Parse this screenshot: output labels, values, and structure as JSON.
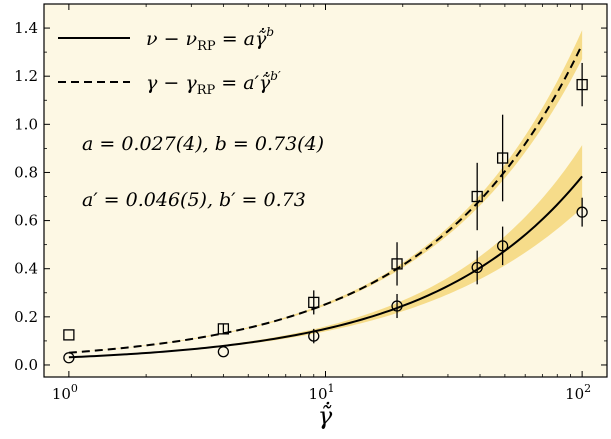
{
  "chart_data": {
    "type": "scatter",
    "xscale": "log",
    "xlim": [
      0.8,
      125
    ],
    "ylim": [
      -0.05,
      1.5
    ],
    "background": "#fdf8e4",
    "band_color": "#f5d77a",
    "xlabel": "γ̃̇",
    "x_ticks": [
      {
        "value": 1,
        "base": "10",
        "exp": "0"
      },
      {
        "value": 10,
        "base": "10",
        "exp": "1"
      },
      {
        "value": 100,
        "base": "10",
        "exp": "2"
      }
    ],
    "y_ticks": [
      {
        "value": 0.0,
        "label": "0.0"
      },
      {
        "value": 0.2,
        "label": "0.2"
      },
      {
        "value": 0.4,
        "label": "0.4"
      },
      {
        "value": 0.6,
        "label": "0.6"
      },
      {
        "value": 0.8,
        "label": "0.8"
      },
      {
        "value": 1.0,
        "label": "1.0"
      },
      {
        "value": 1.2,
        "label": "1.2"
      },
      {
        "value": 1.4,
        "label": "1.4"
      }
    ],
    "series": [
      {
        "name": "ν − ν_RP",
        "marker": "circle",
        "line": "solid",
        "fit": {
          "a": 0.027,
          "b": 0.73,
          "offset": 0.005,
          "band_at_100": 0.13
        },
        "points": [
          {
            "x": 1,
            "y": 0.03,
            "err": 0.0
          },
          {
            "x": 4,
            "y": 0.055,
            "err": 0.0
          },
          {
            "x": 9,
            "y": 0.12,
            "err": 0.03
          },
          {
            "x": 19,
            "y": 0.245,
            "err": 0.05
          },
          {
            "x": 39,
            "y": 0.405,
            "err": 0.07
          },
          {
            "x": 49,
            "y": 0.495,
            "err": 0.08
          },
          {
            "x": 100,
            "y": 0.635,
            "err": 0.06
          }
        ]
      },
      {
        "name": "γ − γ_RP",
        "marker": "square",
        "line": "dashed",
        "fit": {
          "a": 0.046,
          "b": 0.73,
          "offset": 0.005,
          "band_at_100": 0.06
        },
        "points": [
          {
            "x": 1,
            "y": 0.125,
            "err": 0.0
          },
          {
            "x": 4,
            "y": 0.15,
            "err": 0.02
          },
          {
            "x": 9,
            "y": 0.26,
            "err": 0.05
          },
          {
            "x": 19,
            "y": 0.42,
            "err": 0.09
          },
          {
            "x": 39,
            "y": 0.7,
            "err": 0.14
          },
          {
            "x": 49,
            "y": 0.86,
            "err": 0.18
          },
          {
            "x": 100,
            "y": 1.165,
            "err": 0.09
          }
        ]
      }
    ],
    "legend": {
      "placement": "top-left",
      "entries": [
        {
          "lhs": "ν − ν",
          "sub": "RP",
          "rhs": " = a",
          "sym": "γ̃̇",
          "exp": "b"
        },
        {
          "lhs": "γ − γ",
          "sub": "RP",
          "rhs": " = a′",
          "sym": "γ̃̇",
          "exp": "b′"
        }
      ]
    },
    "annotations": [
      {
        "text": "a = 0.027(4),  b = 0.73(4)"
      },
      {
        "text": "a′ = 0.046(5),  b′ = 0.73"
      }
    ]
  }
}
